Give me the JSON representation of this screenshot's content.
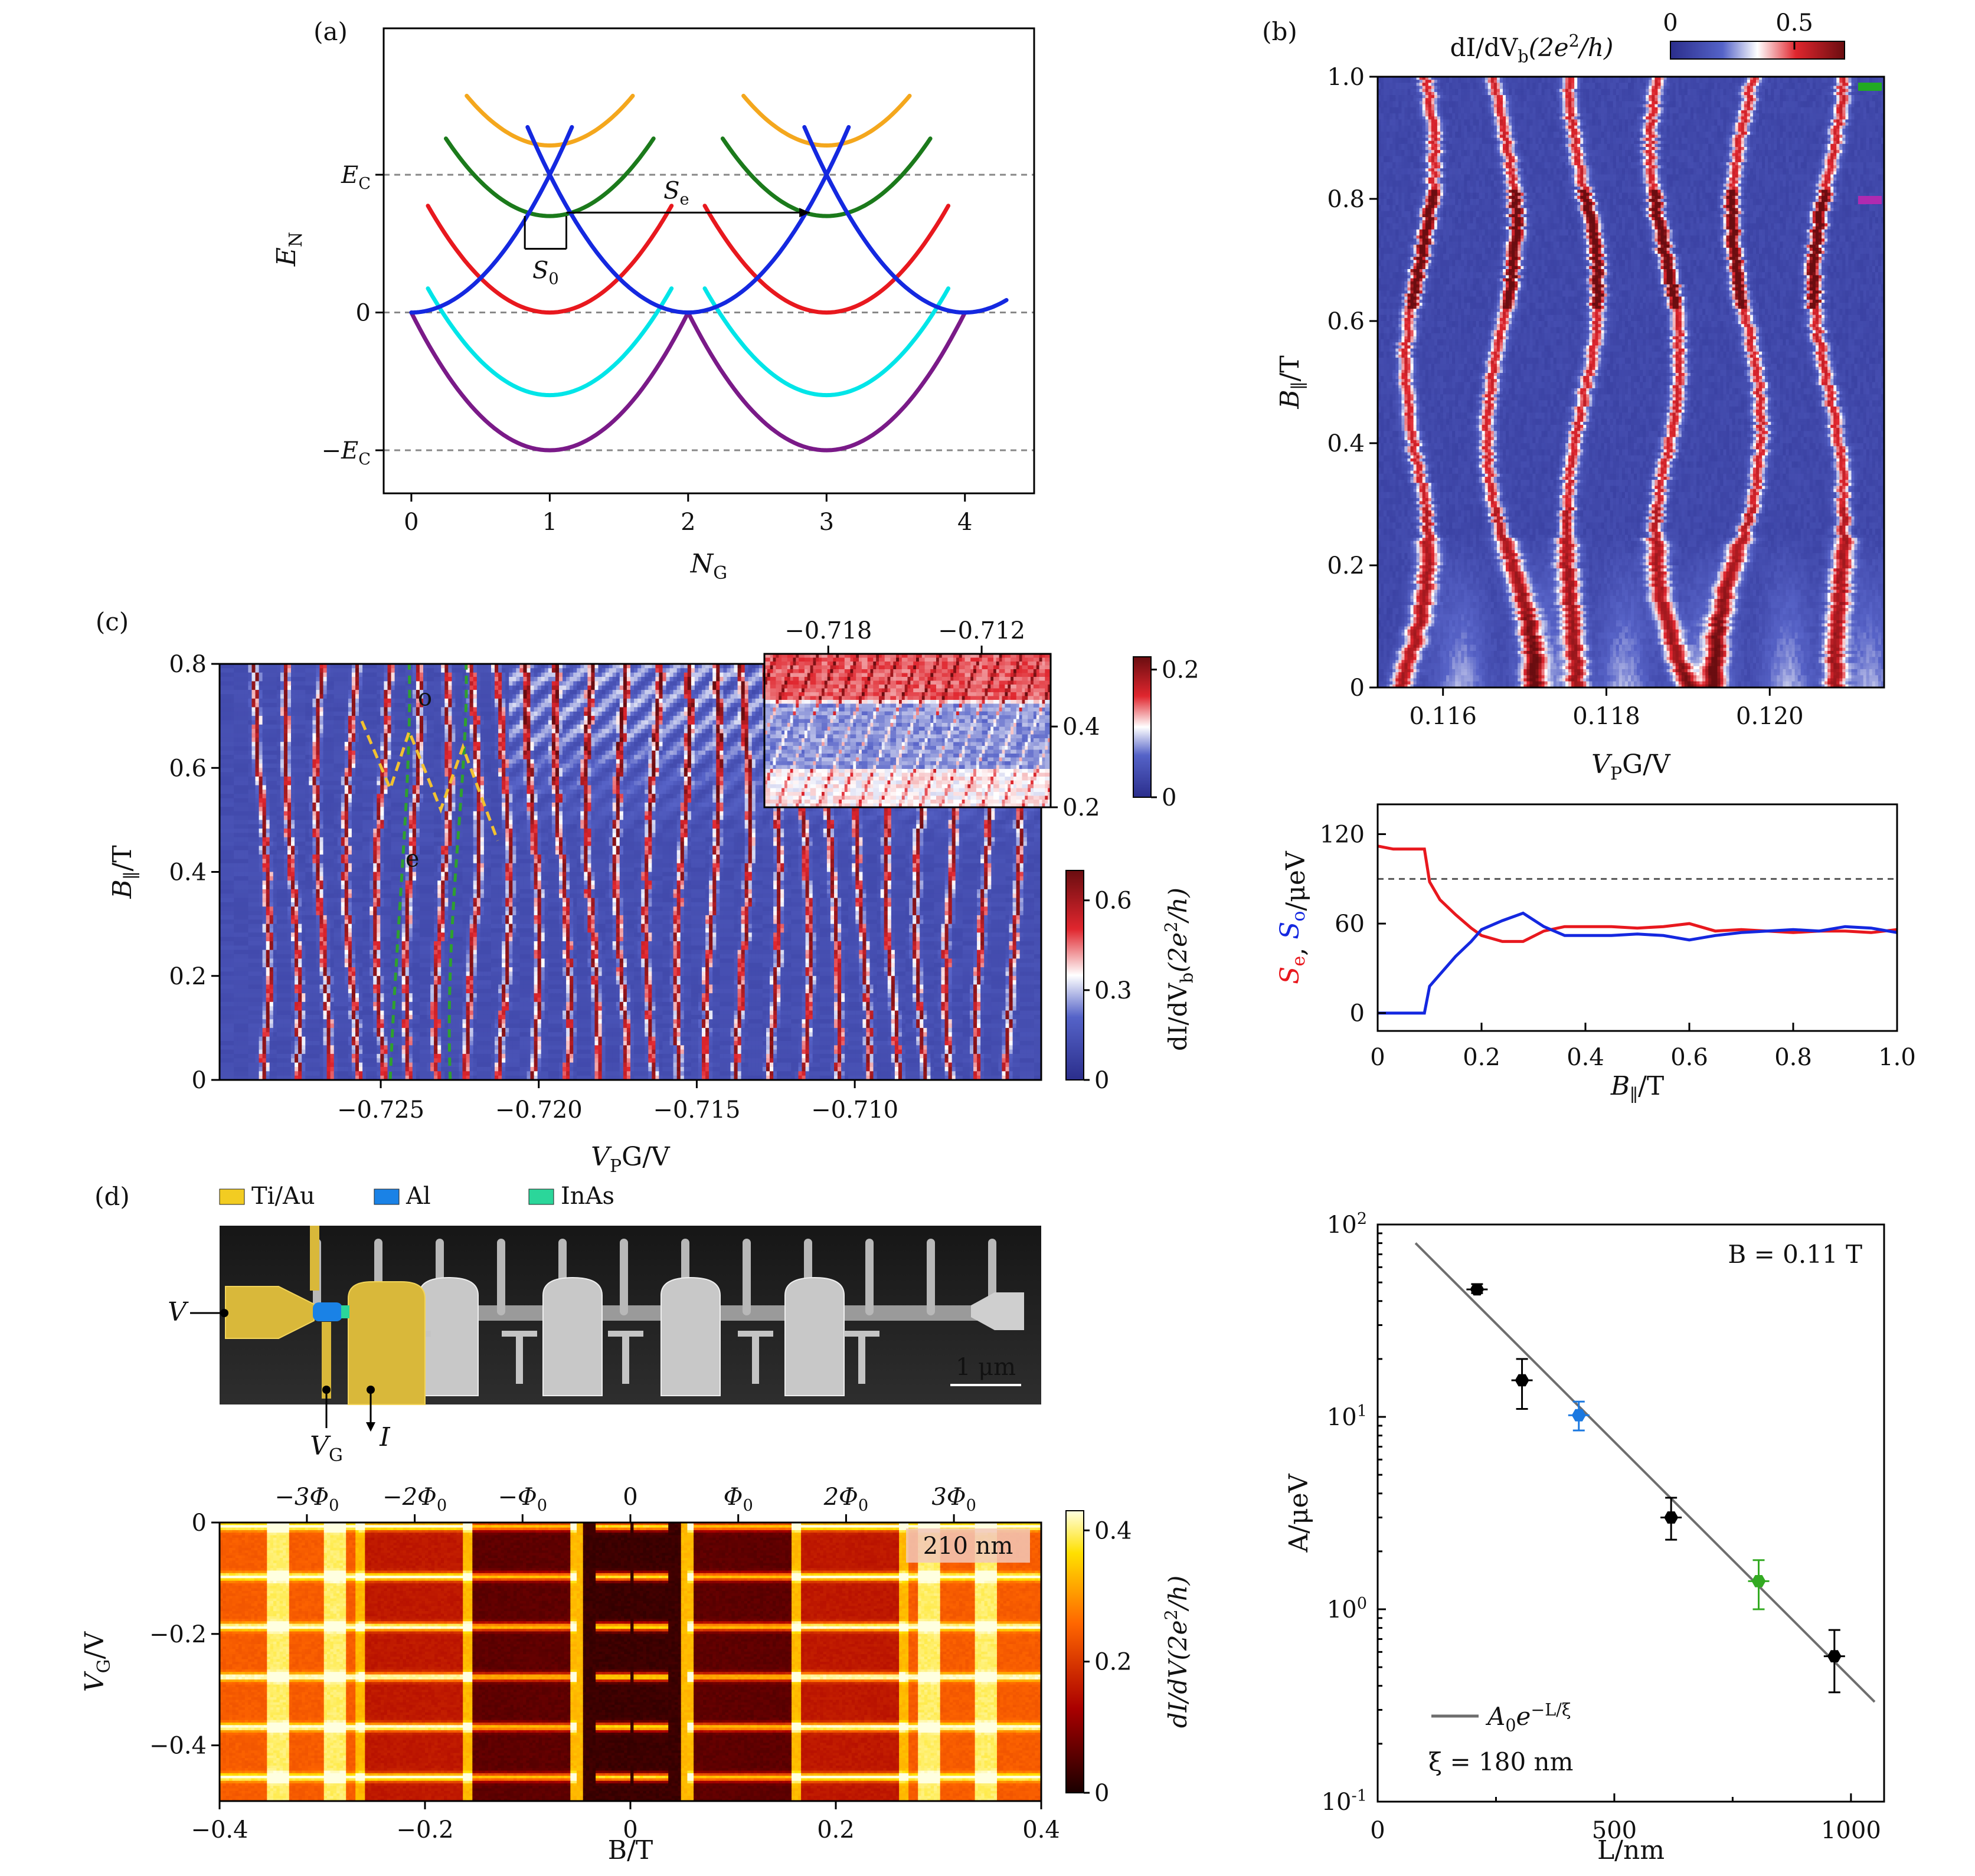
{
  "chart_data": [
    {
      "panel": "(a)",
      "type": "line",
      "xlabel": "N_G",
      "ylabel": "E_N",
      "xlim": [
        -0.2,
        4.5
      ],
      "ylim": [
        -1.05,
        1.65
      ],
      "xticks": [
        "0",
        "1",
        "2",
        "3",
        "4"
      ],
      "yticks": [
        {
          "label": "E_C",
          "value": 0.8
        },
        {
          "label": "0",
          "value": 0
        },
        {
          "label": "−E_C",
          "value": -0.8
        }
      ],
      "reference_lines": [
        0.8,
        0,
        -0.8
      ],
      "annotations": [
        "S_e",
        "S_0"
      ],
      "series_colors": [
        "#f4a71d",
        "#1b7a1b",
        "#e8181e",
        "#00e5e8",
        "#7a1a88",
        "#1428e0"
      ],
      "curves": [
        {
          "color": "#f4a71d",
          "minima": [
            1,
            3
          ],
          "min_value": 0.97
        },
        {
          "color": "#1b7a1b",
          "minima": [
            1,
            3
          ],
          "min_value": 0.56
        },
        {
          "color": "#e8181e",
          "minima": [
            1,
            3
          ],
          "min_value": 0
        },
        {
          "color": "#00e5e8",
          "minima": [
            1,
            3
          ],
          "min_value": -0.48
        },
        {
          "color": "#7a1a88",
          "minima": [
            1,
            3
          ],
          "min_value": -0.8
        },
        {
          "color": "#1428e0",
          "minima": [
            0,
            2,
            4
          ],
          "min_value": 0
        }
      ]
    },
    {
      "panel": "(b)",
      "type": "heatmap",
      "xlabel": "V_PG/V",
      "ylabel": "B_∥/T",
      "xlim": [
        0.1152,
        0.1214
      ],
      "ylim": [
        0,
        1.0
      ],
      "xticks": [
        "0.116",
        "0.118",
        "0.120"
      ],
      "yticks": [
        "0",
        "0.2",
        "0.4",
        "0.6",
        "0.8",
        "1.0"
      ],
      "colorbar": {
        "label": "dI/dV_b(2e^2/h)",
        "ticks": [
          "0",
          "0.5"
        ],
        "range": [
          0,
          0.7
        ]
      }
    },
    {
      "panel": "(b-lower)",
      "type": "line",
      "xlabel": "B_∥/T",
      "ylabel": "S_e, S_o/μeV",
      "xlim": [
        0,
        1.0
      ],
      "ylim": [
        -12,
        140
      ],
      "xticks": [
        "0",
        "0.2",
        "0.4",
        "0.6",
        "0.8",
        "1.0"
      ],
      "yticks": [
        "0",
        "60",
        "120"
      ],
      "reference_line": 90,
      "series": [
        {
          "name": "S_e",
          "color": "#e8181e",
          "x": [
            0,
            0.03,
            0.05,
            0.09,
            0.1,
            0.12,
            0.15,
            0.18,
            0.2,
            0.24,
            0.28,
            0.32,
            0.36,
            0.4,
            0.45,
            0.5,
            0.55,
            0.6,
            0.65,
            0.7,
            0.75,
            0.8,
            0.85,
            0.9,
            0.95,
            1.0
          ],
          "values": [
            112,
            110,
            110,
            110,
            88,
            76,
            66,
            57,
            52,
            48,
            48,
            55,
            58,
            58,
            58,
            57,
            58,
            60,
            55,
            56,
            55,
            54,
            55,
            55,
            54,
            56
          ]
        },
        {
          "name": "S_o",
          "color": "#1428e0",
          "x": [
            0,
            0.09,
            0.1,
            0.12,
            0.15,
            0.18,
            0.2,
            0.24,
            0.28,
            0.32,
            0.36,
            0.4,
            0.45,
            0.5,
            0.55,
            0.6,
            0.65,
            0.7,
            0.75,
            0.8,
            0.85,
            0.9,
            0.95,
            1.0
          ],
          "values": [
            0,
            0,
            18,
            26,
            38,
            48,
            56,
            62,
            67,
            58,
            52,
            52,
            52,
            53,
            52,
            49,
            52,
            54,
            55,
            56,
            55,
            58,
            57,
            54
          ]
        }
      ]
    },
    {
      "panel": "(c)",
      "type": "heatmap",
      "xlabel": "V_PG/V",
      "ylabel": "B_∥/T",
      "xlim": [
        -0.7301,
        -0.7041
      ],
      "ylim": [
        0,
        0.8
      ],
      "xticks": [
        "−0.725",
        "−0.720",
        "−0.715",
        "−0.710"
      ],
      "yticks": [
        "0",
        "0.2",
        "0.4",
        "0.6",
        "0.8"
      ],
      "annotations": [
        "o",
        "e"
      ],
      "colorbar": {
        "label": "dI/dV_b(2e^2/h)",
        "ticks": [
          "0",
          "0.3",
          "0.6"
        ],
        "range": [
          0,
          0.7
        ]
      },
      "inset": {
        "xticks": [
          "−0.718",
          "−0.712"
        ],
        "yticks": [
          "0.2",
          "0.4"
        ],
        "colorbar": {
          "ticks": [
            "0",
            "0.2"
          ],
          "range": [
            0,
            0.22
          ]
        }
      }
    },
    {
      "panel": "(d)",
      "type": "heatmap",
      "legend": [
        {
          "label": "Ti/Au",
          "color": "#f2cc22"
        },
        {
          "label": "Al",
          "color": "#1a82e6"
        },
        {
          "label": "InAs",
          "color": "#2bd69a"
        }
      ],
      "sem_labels": {
        "V": "V",
        "VG": "V_G",
        "I": "I",
        "scale": "1 μm"
      },
      "xlabel": "B/T",
      "ylabel": "V_G/V",
      "xlim": [
        -0.4,
        0.4
      ],
      "ylim": [
        -0.5,
        0
      ],
      "xticks": [
        "−0.4",
        "−0.2",
        "0",
        "0.2",
        "0.4"
      ],
      "yticks": [
        "0",
        "−0.2",
        "−0.4"
      ],
      "top_ticks": [
        "−3Φ_0",
        "−2Φ_0",
        "−Φ_0",
        "0",
        "Φ_0",
        "2Φ_0",
        "3Φ_0"
      ],
      "length_label": "210 nm",
      "colorbar": {
        "label": "dI/dV(2e^2/h)",
        "ticks": [
          "0",
          "0.2",
          "0.4"
        ],
        "range": [
          0,
          0.43
        ]
      }
    },
    {
      "panel": "(e)",
      "type": "scatter",
      "xlabel": "L/nm",
      "ylabel": "A/μeV",
      "log_y": true,
      "xlim": [
        0,
        1070
      ],
      "ylim": [
        0.1,
        100
      ],
      "xticks": [
        "0",
        "500",
        "1000"
      ],
      "yticks": [
        "10^-1",
        "10^0",
        "10^1",
        "10^2"
      ],
      "field_label": "B = 0.11 T",
      "fit_legend": "A_0e^{−L/ξ}",
      "fit_note": "ξ = 180 nm",
      "points": [
        {
          "x": 210,
          "y": 46,
          "yerr": [
            44,
            49
          ],
          "color": "#000000"
        },
        {
          "x": 305,
          "y": 15.5,
          "yerr": [
            11,
            20
          ],
          "color": "#000000"
        },
        {
          "x": 425,
          "y": 10.2,
          "yerr": [
            8.5,
            12
          ],
          "color": "#1a78e0"
        },
        {
          "x": 620,
          "y": 3.0,
          "yerr": [
            2.3,
            3.8
          ],
          "color": "#000000"
        },
        {
          "x": 805,
          "y": 1.4,
          "yerr": [
            1.0,
            1.8
          ],
          "color": "#33aa22"
        },
        {
          "x": 965,
          "y": 0.57,
          "yerr": [
            0.37,
            0.78
          ],
          "color": "#000000"
        }
      ],
      "fit_line": {
        "x": [
          80,
          1050
        ],
        "y": [
          80,
          0.33
        ],
        "color": "#6e6e6e"
      }
    }
  ]
}
